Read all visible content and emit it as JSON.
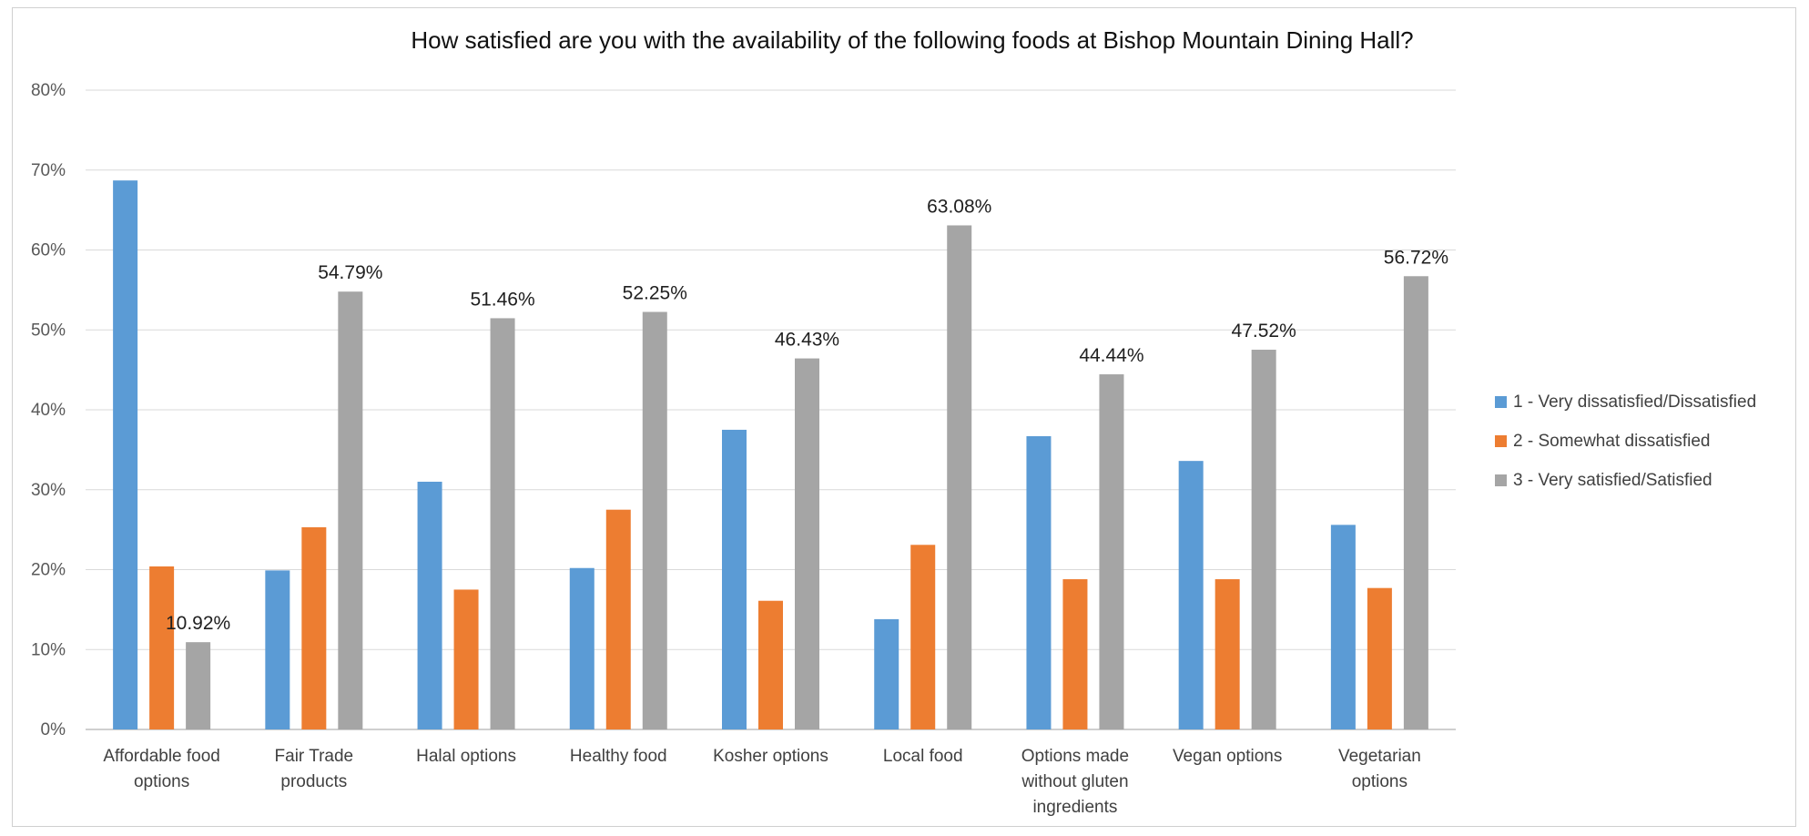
{
  "chart_data": {
    "type": "bar",
    "title": "How satisfied are you with the availability of the following foods at Bishop Mountain Dining Hall?",
    "xlabel": "",
    "ylabel": "",
    "ylim": [
      0,
      80
    ],
    "y_tick_step": 10,
    "y_tick_suffix": "%",
    "grid": true,
    "legend_position": "right",
    "categories": [
      [
        "Affordable food",
        "options"
      ],
      [
        "Fair Trade",
        "products"
      ],
      [
        "Halal options"
      ],
      [
        "Healthy food"
      ],
      [
        "Kosher options"
      ],
      [
        "Local food"
      ],
      [
        "Options made",
        "without gluten",
        "ingredients"
      ],
      [
        "Vegan options"
      ],
      [
        "Vegetarian",
        "options"
      ]
    ],
    "series": [
      {
        "name": "1 - Very dissatisfied/Dissatisfied",
        "color": "#5b9bd5",
        "values": [
          68.7,
          19.9,
          31.0,
          20.2,
          37.5,
          13.8,
          36.7,
          33.6,
          25.6
        ],
        "labels": [
          "",
          "",
          "",
          "",
          "",
          "",
          "",
          "",
          ""
        ]
      },
      {
        "name": "2 - Somewhat dissatisfied",
        "color": "#ed7d31",
        "values": [
          20.4,
          25.3,
          17.5,
          27.5,
          16.1,
          23.1,
          18.8,
          18.8,
          17.7
        ],
        "labels": [
          "",
          "",
          "",
          "",
          "",
          "",
          "",
          "",
          ""
        ]
      },
      {
        "name": "3 - Very satisfied/Satisfied",
        "color": "#a5a5a5",
        "values": [
          10.92,
          54.79,
          51.46,
          52.25,
          46.43,
          63.08,
          44.44,
          47.52,
          56.72
        ],
        "labels": [
          "10.92%",
          "54.79%",
          "51.46%",
          "52.25%",
          "46.43%",
          "63.08%",
          "44.44%",
          "47.52%",
          "56.72%"
        ]
      }
    ]
  }
}
